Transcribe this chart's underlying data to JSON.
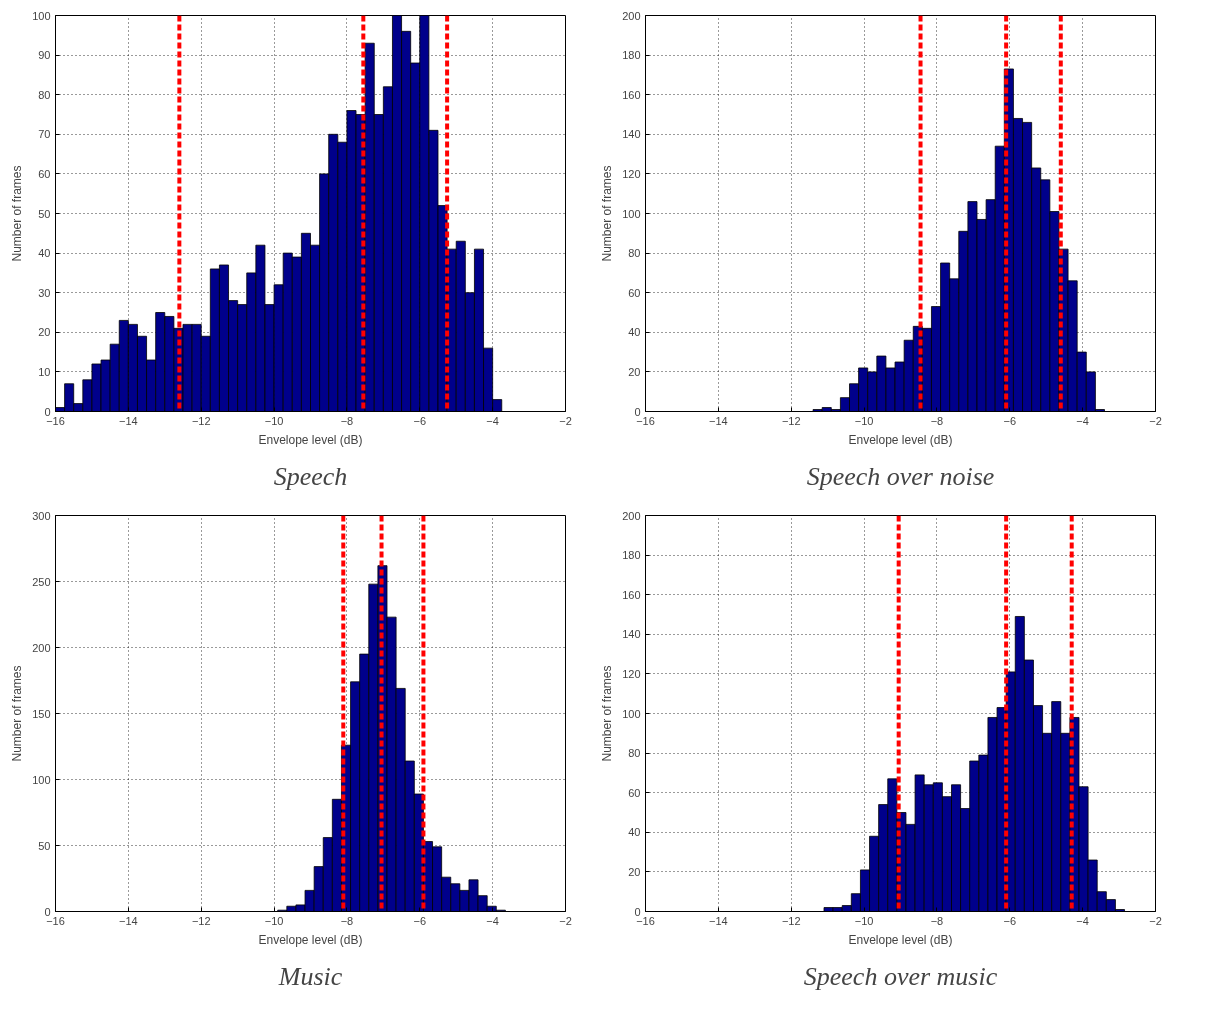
{
  "chart_data": [
    {
      "type": "histogram",
      "title": "Speech",
      "xlabel": "Envelope level (dB)",
      "ylabel": "Number of frames",
      "color": "#00008b",
      "grid": true,
      "xlim": [
        -16,
        -2
      ],
      "xticks": [
        -16,
        -14,
        -12,
        -10,
        -8,
        -6,
        -4,
        -2
      ],
      "ylim": [
        0,
        100
      ],
      "yticks": [
        0,
        10,
        20,
        30,
        40,
        50,
        60,
        70,
        80,
        90,
        100
      ],
      "bins": [
        -16,
        -15.75,
        -15.5,
        -15.25,
        -15,
        -14.75,
        -14.5,
        -14.25,
        -14,
        -13.75,
        -13.5,
        -13.25,
        -13,
        -12.75,
        -12.5,
        -12.25,
        -12,
        -11.75,
        -11.5,
        -11.25,
        -11,
        -10.75,
        -10.5,
        -10.25,
        -10,
        -9.75,
        -9.5,
        -9.25,
        -9,
        -8.75,
        -8.5,
        -8.25,
        -8,
        -7.75,
        -7.5,
        -7.25,
        -7,
        -6.75,
        -6.5,
        -6.25,
        -6,
        -5.75,
        -5.5,
        -5.25,
        -5,
        -4.75,
        -4.5,
        -4.25,
        -4,
        -3.75
      ],
      "values": [
        1,
        7,
        2,
        8,
        12,
        13,
        17,
        23,
        22,
        19,
        13,
        25,
        24,
        21,
        22,
        22,
        19,
        36,
        37,
        28,
        27,
        35,
        42,
        27,
        32,
        40,
        39,
        45,
        42,
        60,
        70,
        68,
        76,
        75,
        93,
        75,
        82,
        100,
        96,
        88,
        100,
        71,
        52,
        41,
        43,
        30,
        41,
        16,
        3
      ],
      "ref_lines": [
        {
          "axis": "x",
          "value": -12.6,
          "color": "#ff0000",
          "line_style": "dashed"
        },
        {
          "axis": "x",
          "value": -7.55,
          "color": "#ff0000",
          "line_style": "dashed"
        },
        {
          "axis": "x",
          "value": -5.25,
          "color": "#ff0000",
          "line_style": "dashed"
        }
      ]
    },
    {
      "type": "histogram",
      "title": "Speech over noise",
      "xlabel": "Envelope level (dB)",
      "ylabel": "Number of frames",
      "color": "#00008b",
      "grid": true,
      "xlim": [
        -16,
        -2
      ],
      "xticks": [
        -16,
        -14,
        -12,
        -10,
        -8,
        -6,
        -4,
        -2
      ],
      "ylim": [
        0,
        200
      ],
      "yticks": [
        0,
        20,
        40,
        60,
        80,
        100,
        120,
        140,
        160,
        180,
        200
      ],
      "bins": [
        -11.4,
        -11.15,
        -10.9,
        -10.65,
        -10.4,
        -10.15,
        -9.9,
        -9.65,
        -9.4,
        -9.15,
        -8.9,
        -8.65,
        -8.4,
        -8.15,
        -7.9,
        -7.65,
        -7.4,
        -7.15,
        -6.9,
        -6.65,
        -6.4,
        -6.15,
        -5.9,
        -5.65,
        -5.4,
        -5.15,
        -4.9,
        -4.65,
        -4.4,
        -4.15,
        -3.9,
        -3.65,
        -3.4
      ],
      "values": [
        1,
        2,
        1,
        7,
        14,
        22,
        20,
        28,
        22,
        25,
        36,
        43,
        42,
        53,
        75,
        67,
        91,
        106,
        97,
        107,
        134,
        173,
        148,
        146,
        123,
        117,
        101,
        82,
        66,
        30,
        20,
        1
      ],
      "ref_lines": [
        {
          "axis": "x",
          "value": -8.45,
          "color": "#ff0000",
          "line_style": "dashed"
        },
        {
          "axis": "x",
          "value": -6.1,
          "color": "#ff0000",
          "line_style": "dashed"
        },
        {
          "axis": "x",
          "value": -4.6,
          "color": "#ff0000",
          "line_style": "dashed"
        }
      ]
    },
    {
      "type": "histogram",
      "title": "Music",
      "xlabel": "Envelope level (dB)",
      "ylabel": "Number of frames",
      "color": "#00008b",
      "grid": true,
      "xlim": [
        -16,
        -2
      ],
      "xticks": [
        -16,
        -14,
        -12,
        -10,
        -8,
        -6,
        -4,
        -2
      ],
      "ylim": [
        0,
        300
      ],
      "yticks": [
        0,
        50,
        100,
        150,
        200,
        250,
        300
      ],
      "bins": [
        -9.9,
        -9.65,
        -9.4,
        -9.15,
        -8.9,
        -8.65,
        -8.4,
        -8.15,
        -7.9,
        -7.65,
        -7.4,
        -7.15,
        -6.9,
        -6.65,
        -6.4,
        -6.15,
        -5.9,
        -5.65,
        -5.4,
        -5.15,
        -4.9,
        -4.65,
        -4.4,
        -4.15,
        -3.9,
        -3.65
      ],
      "values": [
        1,
        4,
        5,
        16,
        34,
        56,
        85,
        126,
        174,
        195,
        248,
        262,
        223,
        169,
        114,
        89,
        53,
        49,
        26,
        21,
        16,
        24,
        12,
        4,
        1
      ],
      "ref_lines": [
        {
          "axis": "x",
          "value": -8.1,
          "color": "#ff0000",
          "line_style": "dashed"
        },
        {
          "axis": "x",
          "value": -7.05,
          "color": "#ff0000",
          "line_style": "dashed"
        },
        {
          "axis": "x",
          "value": -5.9,
          "color": "#ff0000",
          "line_style": "dashed"
        }
      ]
    },
    {
      "type": "histogram",
      "title": "Speech over music",
      "xlabel": "Envelope level (dB)",
      "ylabel": "Number of frames",
      "color": "#00008b",
      "grid": true,
      "xlim": [
        -16,
        -2
      ],
      "xticks": [
        -16,
        -14,
        -12,
        -10,
        -8,
        -6,
        -4,
        -2
      ],
      "ylim": [
        0,
        200
      ],
      "yticks": [
        0,
        20,
        40,
        60,
        80,
        100,
        120,
        140,
        160,
        180,
        200
      ],
      "bins": [
        -11.1,
        -10.85,
        -10.6,
        -10.35,
        -10.1,
        -9.85,
        -9.6,
        -9.35,
        -9.1,
        -8.85,
        -8.6,
        -8.35,
        -8.1,
        -7.85,
        -7.6,
        -7.35,
        -7.1,
        -6.85,
        -6.6,
        -6.35,
        -6.1,
        -5.85,
        -5.6,
        -5.35,
        -5.1,
        -4.85,
        -4.6,
        -4.35,
        -4.1,
        -3.85,
        -3.6,
        -3.35,
        -3.1,
        -2.85
      ],
      "values": [
        2,
        2,
        3,
        9,
        21,
        38,
        54,
        67,
        50,
        44,
        69,
        64,
        65,
        58,
        64,
        52,
        76,
        79,
        98,
        103,
        121,
        149,
        127,
        104,
        90,
        106,
        90,
        98,
        63,
        26,
        10,
        6,
        1
      ],
      "ref_lines": [
        {
          "axis": "x",
          "value": -9.05,
          "color": "#ff0000",
          "line_style": "dashed"
        },
        {
          "axis": "x",
          "value": -6.1,
          "color": "#ff0000",
          "line_style": "dashed"
        },
        {
          "axis": "x",
          "value": -4.3,
          "color": "#ff0000",
          "line_style": "dashed"
        }
      ]
    }
  ]
}
